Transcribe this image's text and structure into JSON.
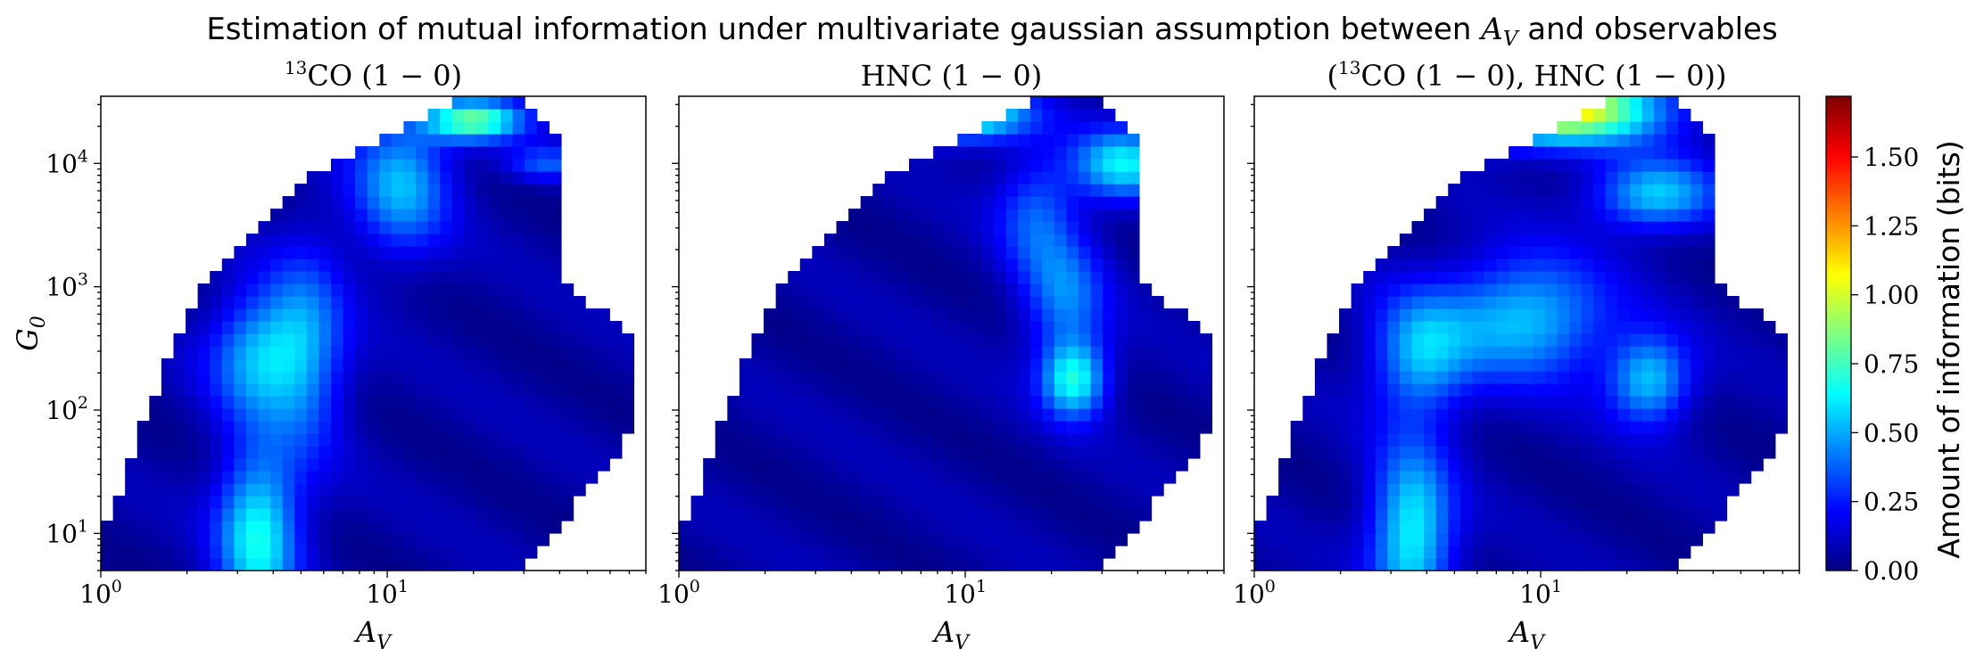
{
  "title": {
    "prefix": "Estimation of mutual information under multivariate gaussian assumption between ",
    "var_main": "A",
    "var_sub": "V",
    "suffix": " and observables"
  },
  "panels": [
    {
      "title_parts": [
        {
          "t": "13",
          "sup": true
        },
        {
          "t": "CO (1 − 0)"
        }
      ],
      "xlabel_main": "A",
      "xlabel_sub": "V",
      "show_ylabel": true
    },
    {
      "title_parts": [
        {
          "t": "HNC (1 − 0)"
        }
      ],
      "xlabel_main": "A",
      "xlabel_sub": "V",
      "show_ylabel": false
    },
    {
      "title_parts": [
        {
          "t": "("
        },
        {
          "t": "13",
          "sup": true
        },
        {
          "t": "CO (1 − 0), HNC (1 − 0))"
        }
      ],
      "xlabel_main": "A",
      "xlabel_sub": "V",
      "show_ylabel": false
    }
  ],
  "ylabel": {
    "main": "G",
    "sub": "0"
  },
  "x_ticks": [
    {
      "base": "10",
      "exp": "0"
    },
    {
      "base": "10",
      "exp": "1"
    }
  ],
  "y_ticks": [
    {
      "base": "10",
      "exp": "1"
    },
    {
      "base": "10",
      "exp": "2"
    },
    {
      "base": "10",
      "exp": "3"
    },
    {
      "base": "10",
      "exp": "4"
    }
  ],
  "colorbar": {
    "label": "Amount of information (bits)",
    "ticks": [
      "0.00",
      "0.25",
      "0.50",
      "0.75",
      "1.00",
      "1.25",
      "1.50"
    ],
    "range": [
      0,
      1.72
    ],
    "colormap": "jet"
  },
  "chart_data": [
    {
      "type": "heatmap",
      "title": "13CO (1 − 0)",
      "xlabel": "A_V",
      "ylabel": "G_0",
      "xscale": "log",
      "yscale": "log",
      "xlim": [
        1,
        80
      ],
      "ylim": [
        5,
        35000
      ],
      "value_range": [
        0,
        1.72
      ],
      "hotspots": [
        {
          "lx": 0.55,
          "ly": 1.0,
          "amp": 0.6,
          "sx": 0.1,
          "sy": 0.5
        },
        {
          "lx": 0.55,
          "ly": 2.45,
          "amp": 0.45,
          "sx": 0.12,
          "sy": 0.35
        },
        {
          "lx": 0.72,
          "ly": 2.5,
          "amp": 0.35,
          "sx": 0.1,
          "sy": 0.6
        },
        {
          "lx": 1.3,
          "ly": 4.35,
          "amp": 0.75,
          "sx": 0.12,
          "sy": 0.12
        },
        {
          "lx": 1.05,
          "ly": 3.85,
          "amp": 0.45,
          "sx": 0.12,
          "sy": 0.4
        },
        {
          "lx": 1.55,
          "ly": 4.0,
          "amp": 0.3,
          "sx": 0.1,
          "sy": 0.1
        }
      ]
    },
    {
      "type": "heatmap",
      "title": "HNC (1 − 0)",
      "xlabel": "A_V",
      "ylabel": "G_0",
      "xscale": "log",
      "yscale": "log",
      "xlim": [
        1,
        80
      ],
      "ylim": [
        5,
        35000
      ],
      "value_range": [
        0,
        1.72
      ],
      "hotspots": [
        {
          "lx": 1.0,
          "ly": 4.4,
          "amp": 0.75,
          "sx": 0.15,
          "sy": 0.15
        },
        {
          "lx": 1.55,
          "ly": 4.0,
          "amp": 0.55,
          "sx": 0.12,
          "sy": 0.2
        },
        {
          "lx": 1.38,
          "ly": 2.25,
          "amp": 0.6,
          "sx": 0.08,
          "sy": 0.22
        },
        {
          "lx": 1.35,
          "ly": 2.9,
          "amp": 0.35,
          "sx": 0.1,
          "sy": 0.35
        },
        {
          "lx": 1.25,
          "ly": 3.6,
          "amp": 0.3,
          "sx": 0.1,
          "sy": 0.35
        }
      ]
    },
    {
      "type": "heatmap",
      "title": "(13CO (1 − 0), HNC (1 − 0))",
      "xlabel": "A_V",
      "ylabel": "G_0",
      "xscale": "log",
      "yscale": "log",
      "xlim": [
        1,
        80
      ],
      "ylim": [
        5,
        35000
      ],
      "value_range": [
        0,
        1.72
      ],
      "hotspots": [
        {
          "lx": 1.05,
          "ly": 4.45,
          "amp": 1.1,
          "sx": 0.25,
          "sy": 0.2
        },
        {
          "lx": 1.4,
          "ly": 3.75,
          "amp": 0.5,
          "sx": 0.15,
          "sy": 0.2
        },
        {
          "lx": 0.55,
          "ly": 1.0,
          "amp": 0.6,
          "sx": 0.1,
          "sy": 0.5
        },
        {
          "lx": 0.58,
          "ly": 2.45,
          "amp": 0.45,
          "sx": 0.12,
          "sy": 0.35
        },
        {
          "lx": 0.95,
          "ly": 2.75,
          "amp": 0.5,
          "sx": 0.2,
          "sy": 0.35
        },
        {
          "lx": 1.38,
          "ly": 2.25,
          "amp": 0.5,
          "sx": 0.1,
          "sy": 0.25
        }
      ]
    }
  ]
}
